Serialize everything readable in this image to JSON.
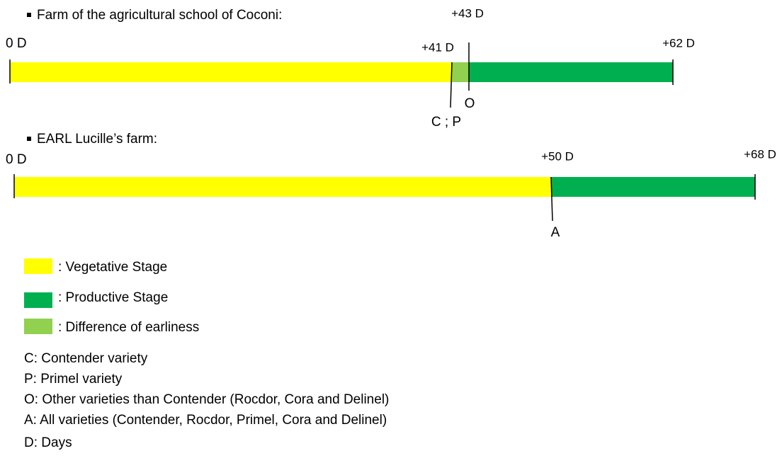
{
  "farms": [
    {
      "title": "Farm of the agricultural school of Coconi:",
      "start": "0 D",
      "early": "+41 D",
      "late": "+43 D",
      "end": "+62 D",
      "marker_late": "O",
      "marker_early": "C ; P"
    },
    {
      "title": "EARL Lucille’s farm:",
      "start": "0 D",
      "split": "+50 D",
      "end": "+68 D",
      "marker": "A"
    }
  ],
  "legend": [
    ": Vegetative Stage",
    ": Productive Stage",
    ": Difference of earliness"
  ],
  "notes": [
    "C: Contender variety",
    "P: Primel variety",
    "O: Other varieties than Contender (Rocdor, Cora and Delinel)",
    "A: All varieties (Contender, Rocdor, Primel, Cora and Delinel)",
    "D: Days"
  ]
}
